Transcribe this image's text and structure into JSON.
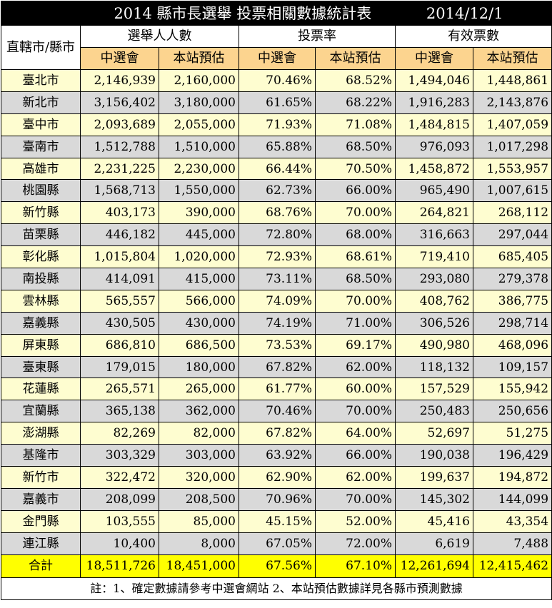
{
  "header": {
    "title": "2014 縣市長選舉  投票相關數據統計表",
    "date": "2014/12/1",
    "corner_label": "直轄市/縣市",
    "groups": [
      "選舉人人數",
      "投票率",
      "有效票數"
    ],
    "subheaders": [
      "中選會",
      "本站預估",
      "中選會",
      "本站預估",
      "中選會",
      "本站預估"
    ]
  },
  "rows": [
    {
      "name": "臺北市",
      "voters_cec": "2,146,939",
      "voters_est": "2,160,000",
      "turnout_cec": "70.46%",
      "turnout_est": "68.52%",
      "valid_cec": "1,494,046",
      "valid_est": "1,448,861"
    },
    {
      "name": "新北市",
      "voters_cec": "3,156,402",
      "voters_est": "3,180,000",
      "turnout_cec": "61.65%",
      "turnout_est": "68.22%",
      "valid_cec": "1,916,283",
      "valid_est": "2,143,876"
    },
    {
      "name": "臺中市",
      "voters_cec": "2,093,689",
      "voters_est": "2,055,000",
      "turnout_cec": "71.93%",
      "turnout_est": "71.08%",
      "valid_cec": "1,484,815",
      "valid_est": "1,407,059"
    },
    {
      "name": "臺南市",
      "voters_cec": "1,512,788",
      "voters_est": "1,510,000",
      "turnout_cec": "65.88%",
      "turnout_est": "68.50%",
      "valid_cec": "976,093",
      "valid_est": "1,017,298"
    },
    {
      "name": "高雄市",
      "voters_cec": "2,231,225",
      "voters_est": "2,230,000",
      "turnout_cec": "66.44%",
      "turnout_est": "70.50%",
      "valid_cec": "1,458,872",
      "valid_est": "1,553,957"
    },
    {
      "name": "桃園縣",
      "voters_cec": "1,568,713",
      "voters_est": "1,550,000",
      "turnout_cec": "62.73%",
      "turnout_est": "66.00%",
      "valid_cec": "965,490",
      "valid_est": "1,007,615"
    },
    {
      "name": "新竹縣",
      "voters_cec": "403,173",
      "voters_est": "390,000",
      "turnout_cec": "68.76%",
      "turnout_est": "70.00%",
      "valid_cec": "264,821",
      "valid_est": "268,112"
    },
    {
      "name": "苗栗縣",
      "voters_cec": "446,182",
      "voters_est": "445,000",
      "turnout_cec": "72.80%",
      "turnout_est": "68.00%",
      "valid_cec": "316,663",
      "valid_est": "297,044"
    },
    {
      "name": "彰化縣",
      "voters_cec": "1,015,804",
      "voters_est": "1,020,000",
      "turnout_cec": "72.93%",
      "turnout_est": "68.61%",
      "valid_cec": "719,410",
      "valid_est": "685,405"
    },
    {
      "name": "南投縣",
      "voters_cec": "414,091",
      "voters_est": "415,000",
      "turnout_cec": "73.11%",
      "turnout_est": "68.50%",
      "valid_cec": "293,080",
      "valid_est": "279,378"
    },
    {
      "name": "雲林縣",
      "voters_cec": "565,557",
      "voters_est": "566,000",
      "turnout_cec": "74.09%",
      "turnout_est": "70.00%",
      "valid_cec": "408,762",
      "valid_est": "386,775"
    },
    {
      "name": "嘉義縣",
      "voters_cec": "430,505",
      "voters_est": "430,000",
      "turnout_cec": "74.19%",
      "turnout_est": "71.00%",
      "valid_cec": "306,526",
      "valid_est": "298,714"
    },
    {
      "name": "屏東縣",
      "voters_cec": "686,810",
      "voters_est": "686,500",
      "turnout_cec": "73.53%",
      "turnout_est": "69.17%",
      "valid_cec": "490,980",
      "valid_est": "468,096"
    },
    {
      "name": "臺東縣",
      "voters_cec": "179,015",
      "voters_est": "180,000",
      "turnout_cec": "67.82%",
      "turnout_est": "62.00%",
      "valid_cec": "118,132",
      "valid_est": "109,157"
    },
    {
      "name": "花蓮縣",
      "voters_cec": "265,571",
      "voters_est": "265,000",
      "turnout_cec": "61.77%",
      "turnout_est": "60.00%",
      "valid_cec": "157,529",
      "valid_est": "155,942"
    },
    {
      "name": "宜蘭縣",
      "voters_cec": "365,138",
      "voters_est": "362,000",
      "turnout_cec": "70.46%",
      "turnout_est": "70.00%",
      "valid_cec": "250,483",
      "valid_est": "250,656"
    },
    {
      "name": "澎湖縣",
      "voters_cec": "82,269",
      "voters_est": "82,000",
      "turnout_cec": "67.82%",
      "turnout_est": "64.00%",
      "valid_cec": "52,697",
      "valid_est": "51,275"
    },
    {
      "name": "基隆市",
      "voters_cec": "303,329",
      "voters_est": "303,000",
      "turnout_cec": "63.92%",
      "turnout_est": "66.00%",
      "valid_cec": "190,038",
      "valid_est": "196,429"
    },
    {
      "name": "新竹市",
      "voters_cec": "322,472",
      "voters_est": "320,000",
      "turnout_cec": "62.90%",
      "turnout_est": "62.00%",
      "valid_cec": "199,637",
      "valid_est": "194,872"
    },
    {
      "name": "嘉義市",
      "voters_cec": "208,099",
      "voters_est": "208,500",
      "turnout_cec": "70.96%",
      "turnout_est": "70.00%",
      "valid_cec": "145,302",
      "valid_est": "144,099"
    },
    {
      "name": "金門縣",
      "voters_cec": "103,555",
      "voters_est": "85,000",
      "turnout_cec": "45.15%",
      "turnout_est": "52.00%",
      "valid_cec": "45,416",
      "valid_est": "43,354"
    },
    {
      "name": "連江縣",
      "voters_cec": "10,400",
      "voters_est": "8,000",
      "turnout_cec": "67.05%",
      "turnout_est": "72.00%",
      "valid_cec": "6,619",
      "valid_est": "7,488"
    }
  ],
  "total": {
    "name": "合計",
    "voters_cec": "18,511,726",
    "voters_est": "18,451,000",
    "turnout_cec": "67.56%",
    "turnout_est": "67.10%",
    "valid_cec": "12,261,694",
    "valid_est": "12,415,462"
  },
  "note": "註：1、確定數據請參考中選會網站      2、本站預估數據詳見各縣市預測數據",
  "colors": {
    "title_bg": "#000000",
    "subheader_bg": "#fcd48f",
    "odd_row": "#fefdd0",
    "even_row": "#d9d9d9",
    "total_row": "#ffff00"
  }
}
